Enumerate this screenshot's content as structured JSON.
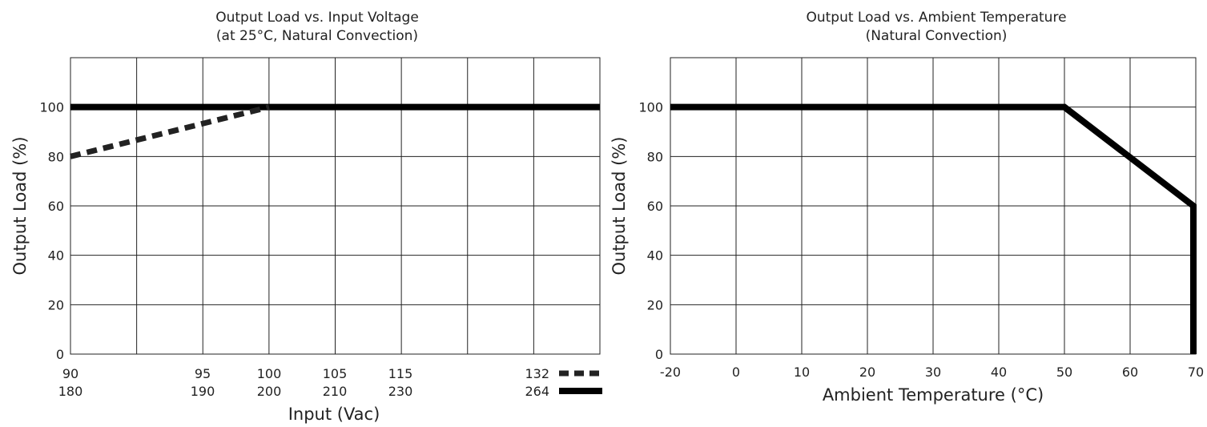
{
  "chart_data": [
    {
      "type": "line",
      "title": "Output Load vs. Input Voltage",
      "subtitle": "(at 25°C, Natural Convection)",
      "xlabel": "Input (Vac)",
      "ylabel": "Output Load (%)",
      "ylim": [
        0,
        120
      ],
      "yticks": [
        "0",
        "20",
        "40",
        "60",
        "80",
        "100"
      ],
      "xticks_row1": [
        "90",
        "95",
        "100",
        "105",
        "115",
        "132"
      ],
      "xticks_row2": [
        "180",
        "190",
        "200",
        "210",
        "230",
        "264"
      ],
      "grid": true,
      "legend_position": "bottom-right",
      "series": [
        {
          "name": "132",
          "style": "dashed",
          "color": "#222222",
          "points": [
            {
              "x": 90,
              "y": 80
            },
            {
              "x": 100,
              "y": 100
            }
          ]
        },
        {
          "name": "264",
          "style": "solid",
          "color": "#000000",
          "points": [
            {
              "x": 90,
              "y": 100
            },
            {
              "x": 132,
              "y": 100
            }
          ]
        }
      ]
    },
    {
      "type": "line",
      "title": "Output Load vs. Ambient Temperature",
      "subtitle": "(Natural Convection)",
      "xlabel": "Ambient Temperature (°C)",
      "ylabel": "Output Load (%)",
      "ylim": [
        0,
        120
      ],
      "xlim": [
        -20,
        70
      ],
      "yticks": [
        "0",
        "20",
        "40",
        "60",
        "80",
        "100"
      ],
      "xticks": [
        "-20",
        "0",
        "10",
        "20",
        "30",
        "40",
        "50",
        "60",
        "70"
      ],
      "grid": true,
      "series": [
        {
          "style": "solid",
          "color": "#000000",
          "points": [
            {
              "x": -20,
              "y": 100
            },
            {
              "x": 50,
              "y": 100
            },
            {
              "x": 70,
              "y": 60
            },
            {
              "x": 70,
              "y": 0
            }
          ]
        }
      ]
    }
  ]
}
